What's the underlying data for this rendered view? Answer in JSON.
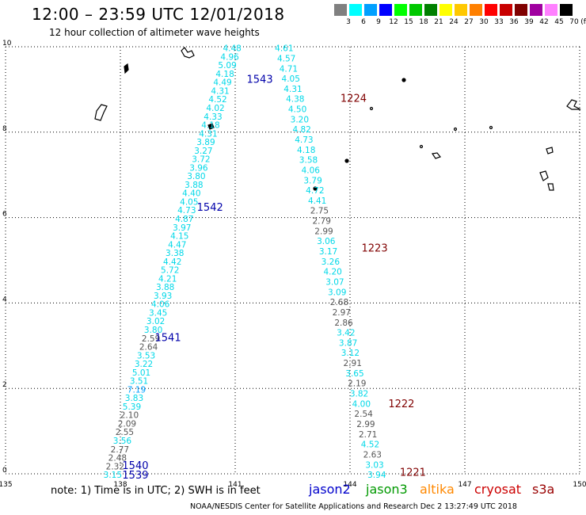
{
  "header": {
    "title": "12:00 – 23:59 UTC 12/01/2018",
    "subtitle": "12 hour collection of altimeter wave heights"
  },
  "color_scale": {
    "labels": [
      "3",
      "6",
      "9",
      "12",
      "15",
      "18",
      "21",
      "24",
      "27",
      "30",
      "33",
      "36",
      "39",
      "42",
      "45",
      "70",
      "(ft)"
    ],
    "colors": [
      "#808080",
      "#00ffff",
      "#00a0ff",
      "#0000ff",
      "#00ff00",
      "#00c800",
      "#008000",
      "#ffff00",
      "#ffc800",
      "#ff8000",
      "#ff0000",
      "#c80000",
      "#800000",
      "#a000a0",
      "#ff80ff",
      "#000000"
    ]
  },
  "map": {
    "x_ticks": [
      "135",
      "138",
      "141",
      "144",
      "147",
      "150"
    ],
    "y_ticks": [
      "0",
      "2",
      "4",
      "6",
      "8",
      "10"
    ]
  },
  "footer": {
    "note": "note:  1) Time is in UTC;  2) SWH is in feet",
    "satellites": [
      {
        "name": "jason2",
        "color": "#0000cc"
      },
      {
        "name": "jason3",
        "color": "#009900"
      },
      {
        "name": "altika",
        "color": "#ff8800"
      },
      {
        "name": "cryosat",
        "color": "#cc0000"
      },
      {
        "name": "s3a",
        "color": "#990000"
      }
    ],
    "credit": "NOAA/NESDIS Center for Satellite Applications and Research     Dec  2 13:27:49 UTC 2018"
  },
  "passes": [
    {
      "label": "1543",
      "color": "#0000aa",
      "lon": 141.3,
      "lat": 9.25
    },
    {
      "label": "1542",
      "color": "#0000aa",
      "lon": 140.0,
      "lat": 6.25
    },
    {
      "label": "1541",
      "color": "#0000aa",
      "lon": 138.9,
      "lat": 3.2
    },
    {
      "label": "1540",
      "color": "#0000aa",
      "lon": 138.05,
      "lat": 0.2
    },
    {
      "label": "1539",
      "color": "#0000aa",
      "lon": 138.05,
      "lat": -0.02
    },
    {
      "label": "1224",
      "color": "#800000",
      "lon": 143.75,
      "lat": 8.8
    },
    {
      "label": "1223",
      "color": "#800000",
      "lon": 144.3,
      "lat": 5.3
    },
    {
      "label": "1222",
      "color": "#800000",
      "lon": 145.0,
      "lat": 1.65
    },
    {
      "label": "1221",
      "color": "#800000",
      "lon": 145.3,
      "lat": 0.05
    }
  ],
  "track_a": {
    "start_lon": 140.92,
    "start_lat": 9.97,
    "end_lon": 137.8,
    "end_lat": -0.02,
    "values": [
      "4.48",
      "4.96",
      "5.09",
      "4.18",
      "4.49",
      "4.31",
      "4.52",
      "4.02",
      "4.33",
      "4.18",
      "4.31",
      "3.89",
      "3.27",
      "3.72",
      "3.96",
      "3.80",
      "3.88",
      "4.40",
      "4.05",
      "4.73",
      "4.87",
      "3.97",
      "4.15",
      "4.47",
      "3.38",
      "4.42",
      "5.72",
      "4.21",
      "3.88",
      "3.93",
      "4.06",
      "3.45",
      "3.02",
      "3.80",
      "2.59",
      "2.64",
      "3.53",
      "3.22",
      "5.01",
      "3.51",
      "7.19",
      "3.83",
      "5.39",
      "2.10",
      "2.09",
      "2.55",
      "3.56",
      "2.77",
      "2.48",
      "2.32",
      "3.15"
    ]
  },
  "track_b": {
    "start_lon": 142.28,
    "start_lat": 9.97,
    "end_lon": 144.7,
    "end_lat": -0.02,
    "values": [
      "4.61",
      "4.57",
      "4.71",
      "4.05",
      "4.31",
      "4.38",
      "4.50",
      "3.20",
      "4.82",
      "4.73",
      "4.18",
      "3.58",
      "4.06",
      "3.79",
      "4.72",
      "4.41",
      "2.75",
      "2.79",
      "2.99",
      "3.06",
      "3.17",
      "3.26",
      "4.20",
      "3.07",
      "3.09",
      "2.68",
      "2.97",
      "2.86",
      "3.42",
      "3.87",
      "3.12",
      "2.91",
      "3.65",
      "2.19",
      "3.82",
      "4.00",
      "2.54",
      "2.99",
      "2.71",
      "4.52",
      "2.63",
      "3.03",
      "3.94"
    ]
  }
}
